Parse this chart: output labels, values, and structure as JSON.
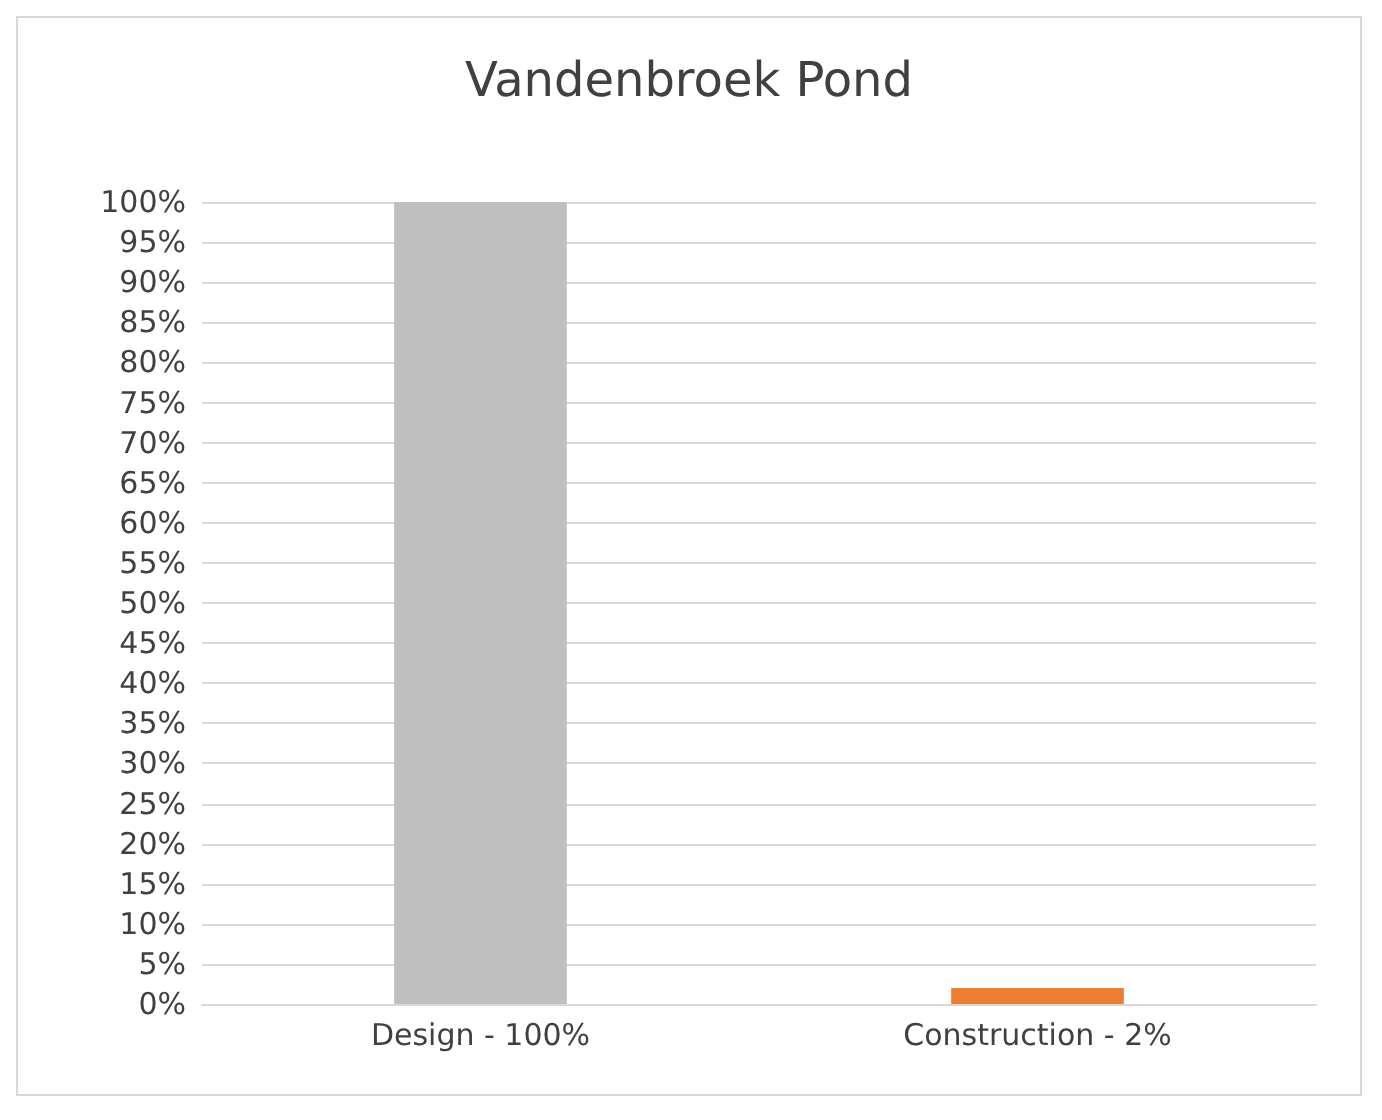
{
  "chart_data": {
    "type": "bar",
    "title": "Vandenbroek Pond",
    "categories": [
      "Design - 100%",
      "Construction - 2%"
    ],
    "values": [
      100,
      2
    ],
    "colors": [
      "#bfbfbf",
      "#ed7d31"
    ],
    "ylim": [
      0,
      100
    ],
    "yticks": [
      {
        "value": 0,
        "label": "0%"
      },
      {
        "value": 5,
        "label": "5%"
      },
      {
        "value": 10,
        "label": "10%"
      },
      {
        "value": 15,
        "label": "15%"
      },
      {
        "value": 20,
        "label": "20%"
      },
      {
        "value": 25,
        "label": "25%"
      },
      {
        "value": 30,
        "label": "30%"
      },
      {
        "value": 35,
        "label": "35%"
      },
      {
        "value": 40,
        "label": "40%"
      },
      {
        "value": 45,
        "label": "45%"
      },
      {
        "value": 50,
        "label": "50%"
      },
      {
        "value": 55,
        "label": "55%"
      },
      {
        "value": 60,
        "label": "60%"
      },
      {
        "value": 65,
        "label": "65%"
      },
      {
        "value": 70,
        "label": "70%"
      },
      {
        "value": 75,
        "label": "75%"
      },
      {
        "value": 80,
        "label": "80%"
      },
      {
        "value": 85,
        "label": "85%"
      },
      {
        "value": 90,
        "label": "90%"
      },
      {
        "value": 95,
        "label": "95%"
      },
      {
        "value": 100,
        "label": "100%"
      }
    ],
    "grid": "y"
  }
}
